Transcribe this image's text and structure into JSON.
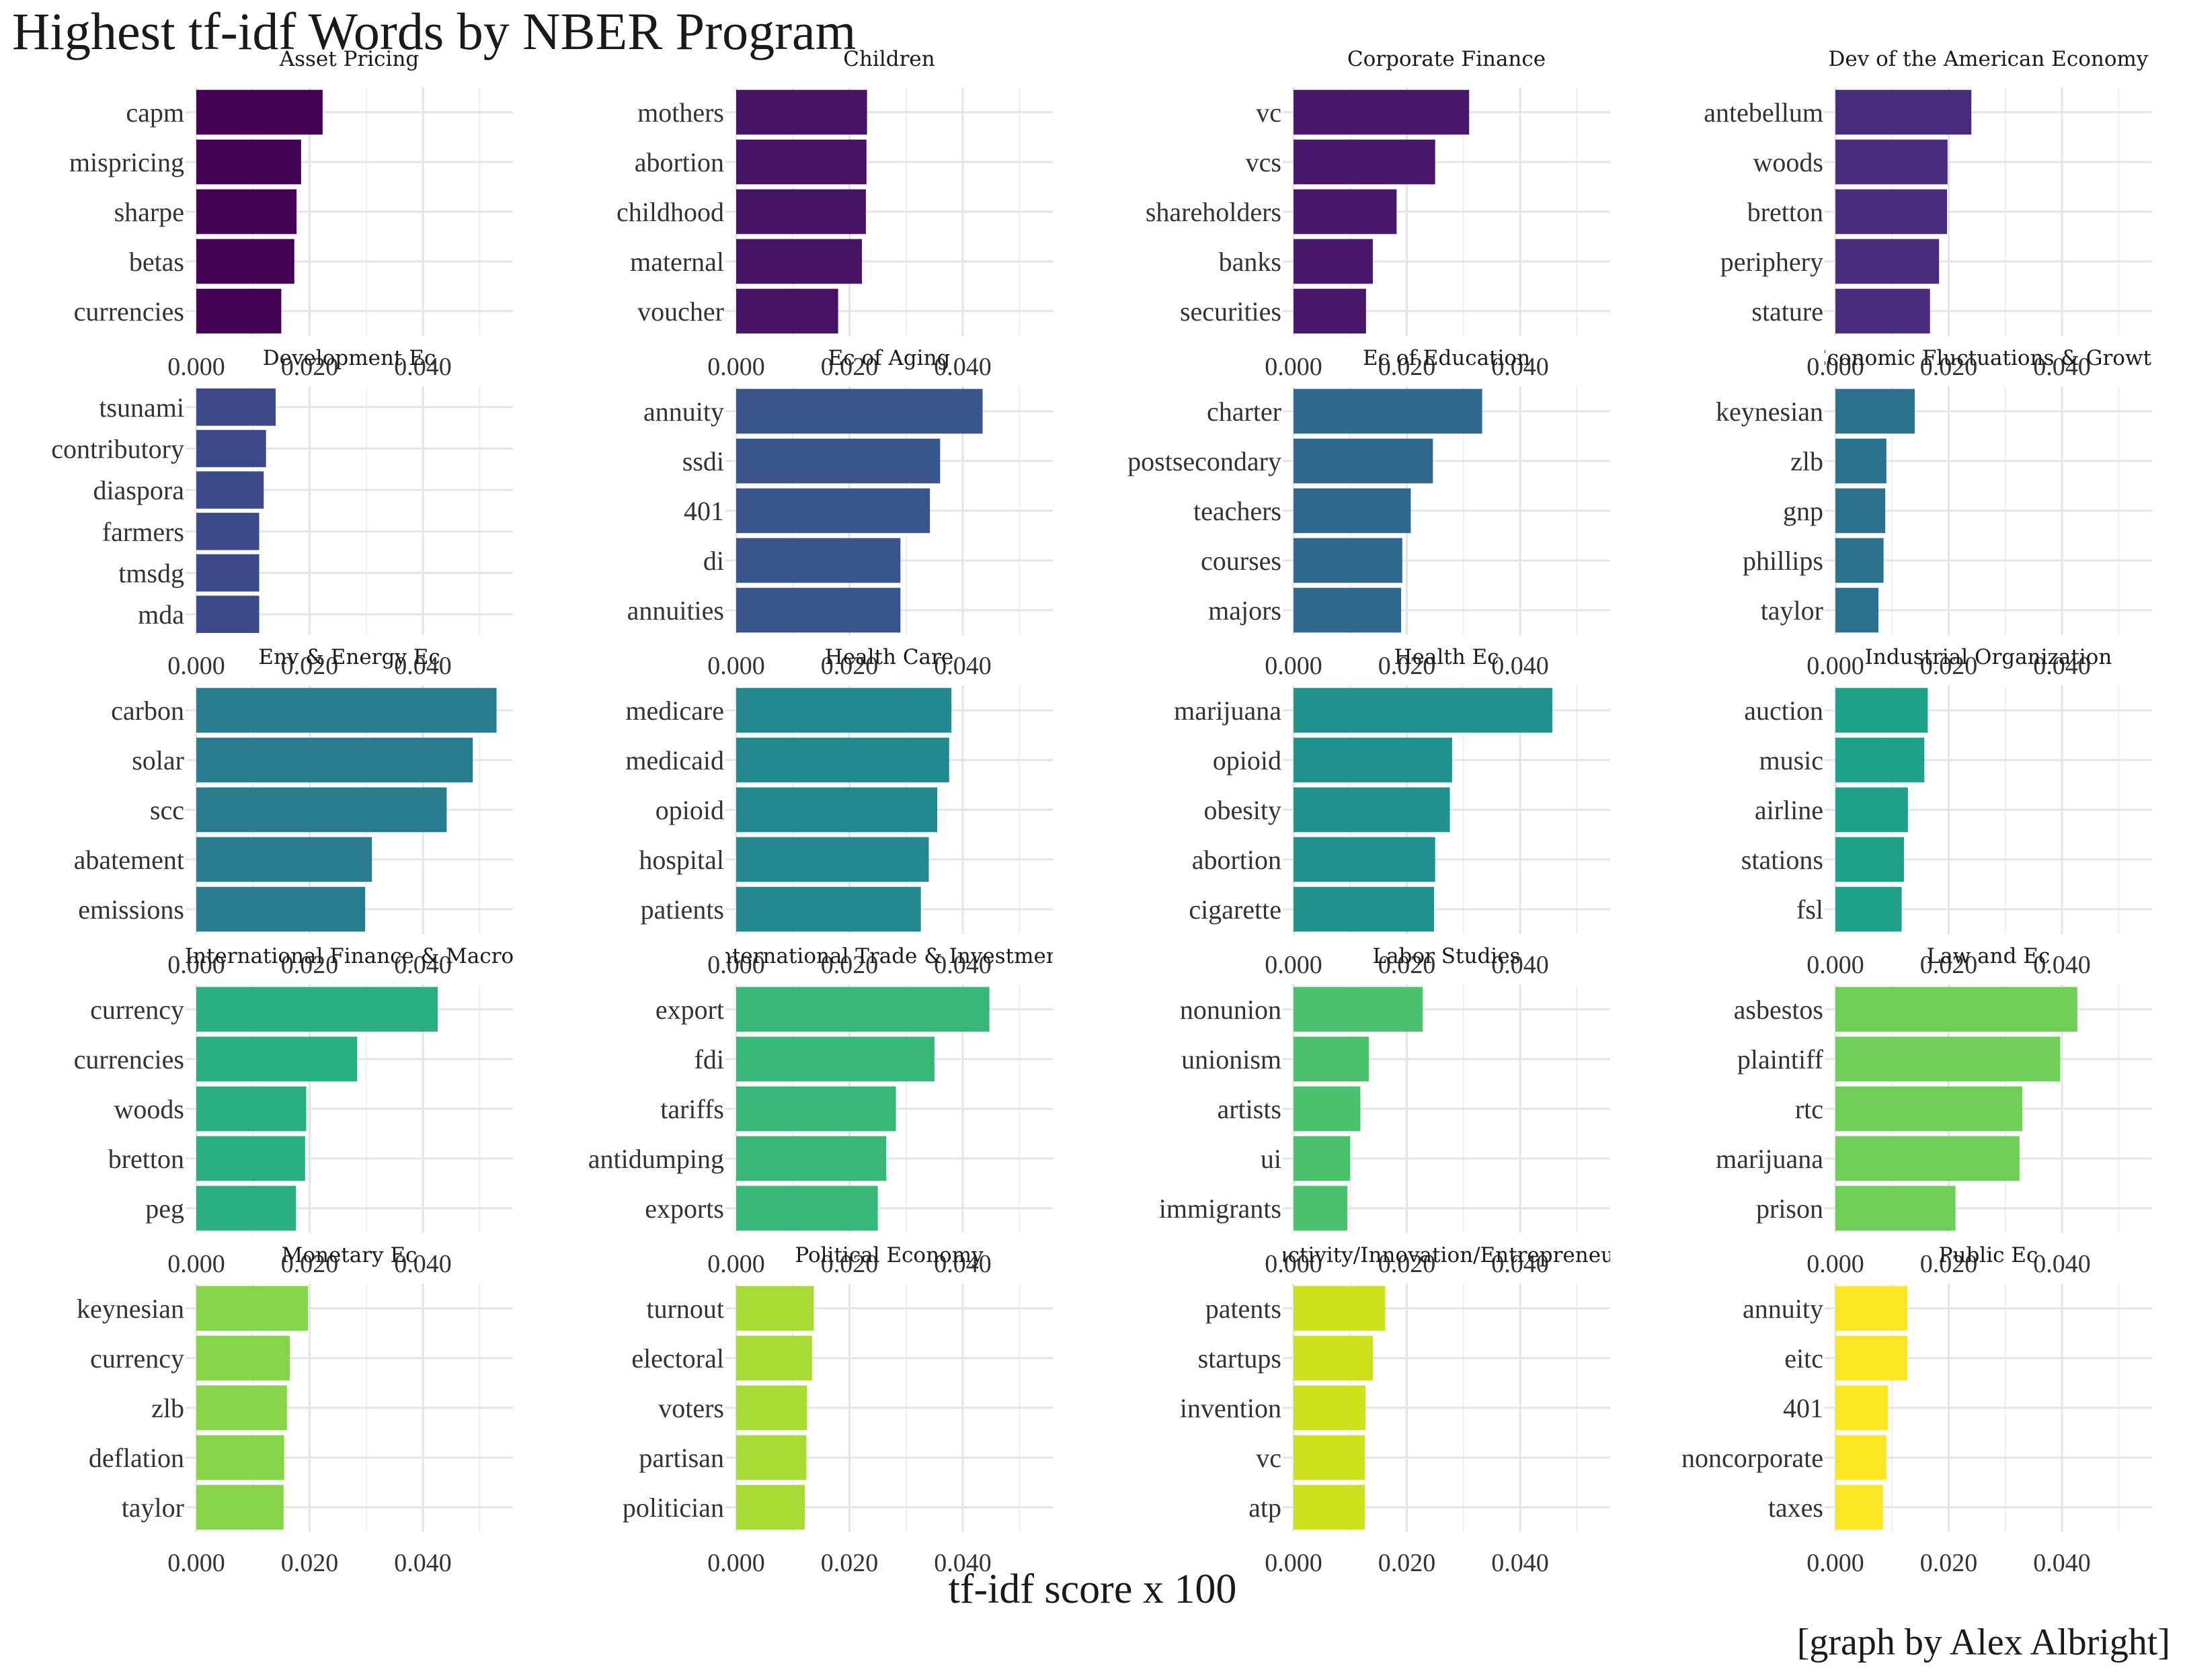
{
  "title": "Highest tf-idf Words by NBER Program",
  "xlabel": "tf-idf score x 100",
  "caption": "[graph by Alex Albright]",
  "chart_data": {
    "type": "bar",
    "orientation": "horizontal",
    "facets": "5 rows x 4 columns",
    "xlim": [
      0,
      0.054
    ],
    "xticks": [
      "0.000",
      "0.020",
      "0.040"
    ],
    "grid": true,
    "color_scale": "viridis",
    "panels": [
      {
        "name": "Asset Pricing",
        "color": "#440154",
        "categories": [
          "capm",
          "mispricing",
          "sharpe",
          "betas",
          "currencies"
        ],
        "values": [
          0.0223,
          0.0185,
          0.0177,
          0.0173,
          0.015
        ]
      },
      {
        "name": "Children",
        "color": "#471365",
        "categories": [
          "mothers",
          "abortion",
          "childhood",
          "maternal",
          "voucher"
        ],
        "values": [
          0.0231,
          0.023,
          0.0229,
          0.0222,
          0.018
        ]
      },
      {
        "name": "Corporate Finance",
        "color": "#48186a",
        "categories": [
          "vc",
          "vcs",
          "shareholders",
          "banks",
          "securities"
        ],
        "values": [
          0.031,
          0.025,
          0.0182,
          0.014,
          0.0128
        ]
      },
      {
        "name": "Dev of the American Economy",
        "color": "#472d7b",
        "categories": [
          "antebellum",
          "woods",
          "bretton",
          "periphery",
          "stature"
        ],
        "values": [
          0.024,
          0.0198,
          0.0197,
          0.0183,
          0.0167
        ]
      },
      {
        "name": "Development Ec",
        "color": "#3e4989",
        "categories": [
          "tsunami",
          "contributory",
          "diaspora",
          "farmers",
          "tmsdg",
          "mda"
        ],
        "values": [
          0.014,
          0.0123,
          0.0119,
          0.0111,
          0.0111,
          0.0111
        ]
      },
      {
        "name": "Ec of Aging",
        "color": "#39558c",
        "categories": [
          "annuity",
          "ssdi",
          "401",
          "di",
          "annuities"
        ],
        "values": [
          0.0435,
          0.036,
          0.0342,
          0.029,
          0.029
        ]
      },
      {
        "name": "Ec of Education",
        "color": "#31688e",
        "categories": [
          "charter",
          "postsecondary",
          "teachers",
          "courses",
          "majors"
        ],
        "values": [
          0.0333,
          0.0246,
          0.0207,
          0.0192,
          0.019
        ]
      },
      {
        "name": "Economic Fluctuations & Growth",
        "color": "#2c728e",
        "categories": [
          "keynesian",
          "zlb",
          "gnp",
          "phillips",
          "taylor"
        ],
        "values": [
          0.014,
          0.009,
          0.0088,
          0.0085,
          0.0076
        ]
      },
      {
        "name": "Env & Energy Ec",
        "color": "#287c8e",
        "categories": [
          "carbon",
          "solar",
          "scc",
          "abatement",
          "emissions"
        ],
        "values": [
          0.053,
          0.0488,
          0.0442,
          0.031,
          0.0298
        ]
      },
      {
        "name": "Health Care",
        "color": "#23898e",
        "categories": [
          "medicare",
          "medicaid",
          "opioid",
          "hospital",
          "patients"
        ],
        "values": [
          0.038,
          0.0376,
          0.0355,
          0.034,
          0.0326
        ]
      },
      {
        "name": "Health Ec",
        "color": "#20928c",
        "categories": [
          "marijuana",
          "opioid",
          "obesity",
          "abortion",
          "cigarette"
        ],
        "values": [
          0.0457,
          0.028,
          0.0276,
          0.025,
          0.0248
        ]
      },
      {
        "name": "Industrial Organization",
        "color": "#1fa088",
        "categories": [
          "auction",
          "music",
          "airline",
          "stations",
          "fsl"
        ],
        "values": [
          0.0163,
          0.0157,
          0.0128,
          0.0121,
          0.0117
        ]
      },
      {
        "name": "International Finance & Macro",
        "color": "#28ae80",
        "categories": [
          "currency",
          "currencies",
          "woods",
          "bretton",
          "peg"
        ],
        "values": [
          0.0426,
          0.0284,
          0.0194,
          0.0192,
          0.0176
        ]
      },
      {
        "name": "International Trade & Investment",
        "color": "#37b878",
        "categories": [
          "export",
          "fdi",
          "tariffs",
          "antidumping",
          "exports"
        ],
        "values": [
          0.0447,
          0.035,
          0.0282,
          0.0265,
          0.025
        ]
      },
      {
        "name": "Labor Studies",
        "color": "#4ac16d",
        "categories": [
          "nonunion",
          "unionism",
          "artists",
          "ui",
          "immigrants"
        ],
        "values": [
          0.0228,
          0.0133,
          0.0118,
          0.01,
          0.0095
        ]
      },
      {
        "name": "Law and Ec",
        "color": "#6ece58",
        "categories": [
          "asbestos",
          "plaintiff",
          "rtc",
          "marijuana",
          "prison"
        ],
        "values": [
          0.0427,
          0.0397,
          0.033,
          0.0325,
          0.0212
        ]
      },
      {
        "name": "Monetary Ec",
        "color": "#86d549",
        "categories": [
          "keynesian",
          "currency",
          "zlb",
          "deflation",
          "taylor"
        ],
        "values": [
          0.0197,
          0.0165,
          0.016,
          0.0155,
          0.0154
        ]
      },
      {
        "name": "Political Economy",
        "color": "#a8db34",
        "categories": [
          "turnout",
          "electoral",
          "voters",
          "partisan",
          "politician"
        ],
        "values": [
          0.0137,
          0.0134,
          0.0125,
          0.0124,
          0.0121
        ]
      },
      {
        "name": "Productivity/Innovation/Entrepreneurship",
        "color": "#cde11d",
        "categories": [
          "patents",
          "startups",
          "invention",
          "vc",
          "atp"
        ],
        "values": [
          0.0162,
          0.014,
          0.0127,
          0.0126,
          0.0126
        ]
      },
      {
        "name": "Public Ec",
        "color": "#fde725",
        "categories": [
          "annuity",
          "eitc",
          "401",
          "noncorporate",
          "taxes"
        ],
        "values": [
          0.0127,
          0.0127,
          0.0093,
          0.009,
          0.0084
        ]
      }
    ]
  }
}
